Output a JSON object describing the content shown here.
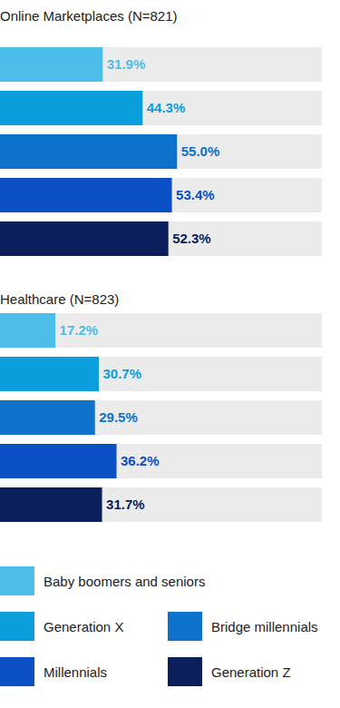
{
  "chart_data": [
    {
      "type": "bar",
      "orientation": "horizontal",
      "title": "Online Marketplaces (N=821)",
      "categories": [
        "Baby boomers and seniors",
        "Generation X",
        "Bridge millennials",
        "Millennials",
        "Generation Z"
      ],
      "values": [
        31.9,
        44.3,
        55.0,
        53.4,
        52.3
      ],
      "value_labels": [
        "31.9%",
        "44.3%",
        "55.0%",
        "53.4%",
        "52.3%"
      ],
      "colors": [
        "#4dbde9",
        "#0a9edc",
        "#0d72c9",
        "#0a4fc3",
        "#0b1f5c"
      ],
      "xlim": [
        0,
        100
      ],
      "data_labels": true,
      "tick_labels": false
    },
    {
      "type": "bar",
      "orientation": "horizontal",
      "title": "Healthcare (N=823)",
      "categories": [
        "Baby boomers and seniors",
        "Generation X",
        "Bridge millennials",
        "Millennials",
        "Generation Z"
      ],
      "values": [
        17.2,
        30.7,
        29.5,
        36.2,
        31.7
      ],
      "value_labels": [
        "17.2%",
        "30.7%",
        "29.5%",
        "36.2%",
        "31.7%"
      ],
      "colors": [
        "#4dbde9",
        "#0a9edc",
        "#0d72c9",
        "#0a4fc3",
        "#0b1f5c"
      ],
      "xlim": [
        0,
        100
      ],
      "data_labels": true,
      "tick_labels": false,
      "legend": "bottom"
    }
  ]
}
